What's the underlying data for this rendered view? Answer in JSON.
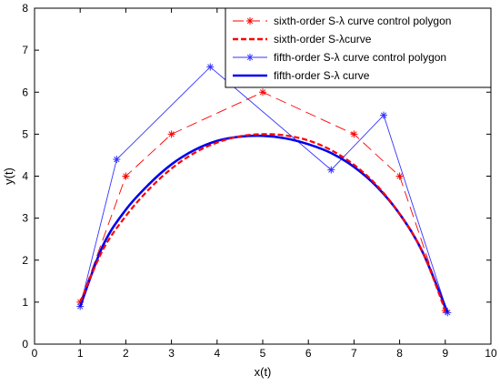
{
  "chart_data": {
    "type": "line",
    "title": "",
    "xlabel": "x(t)",
    "ylabel": "y(t)",
    "xlim": [
      0,
      10
    ],
    "ylim": [
      0,
      8
    ],
    "xticks": [
      0,
      1,
      2,
      3,
      4,
      5,
      6,
      7,
      8,
      9,
      10
    ],
    "yticks": [
      0,
      1,
      2,
      3,
      4,
      5,
      6,
      7,
      8
    ],
    "grid": false,
    "legend_position": "top-right",
    "series": [
      {
        "name": "sixth-order S-λ curve control polygon",
        "style": "control-polygon",
        "color": "#ff0000",
        "dash": "long-dash",
        "marker": "asterisk",
        "x": [
          1,
          2,
          3,
          5,
          7,
          8,
          9
        ],
        "y": [
          1,
          4,
          5,
          6,
          5,
          4,
          0.8
        ]
      },
      {
        "name": "sixth-order S-λcurve",
        "style": "curve",
        "color": "#ff0000",
        "dash": "dashed",
        "x": [
          1.0,
          1.5,
          2.0,
          2.5,
          3.0,
          3.5,
          4.0,
          4.5,
          5.0,
          5.5,
          6.0,
          6.5,
          7.0,
          7.5,
          8.0,
          8.5,
          9.0
        ],
        "y": [
          1.0,
          2.25,
          3.05,
          3.68,
          4.18,
          4.55,
          4.8,
          4.95,
          5.0,
          4.97,
          4.85,
          4.62,
          4.27,
          3.78,
          3.1,
          2.2,
          0.8
        ]
      },
      {
        "name": "fifth-order S-λ curve control polygon",
        "style": "control-polygon",
        "color": "#3333ff",
        "dash": "solid",
        "marker": "asterisk",
        "x": [
          1,
          1.8,
          3.85,
          6.5,
          7.65,
          9.05
        ],
        "y": [
          0.9,
          4.4,
          6.6,
          4.15,
          5.45,
          0.75
        ]
      },
      {
        "name": "fifth-order S-λ curve",
        "style": "curve",
        "color": "#0000ee",
        "dash": "solid",
        "x": [
          1.0,
          1.5,
          2.0,
          2.5,
          3.0,
          3.5,
          4.0,
          4.5,
          5.0,
          5.5,
          6.0,
          6.5,
          7.0,
          7.5,
          8.0,
          8.5,
          9.05
        ],
        "y": [
          0.9,
          2.35,
          3.2,
          3.8,
          4.28,
          4.62,
          4.84,
          4.94,
          4.96,
          4.9,
          4.76,
          4.55,
          4.22,
          3.75,
          3.1,
          2.2,
          0.75
        ]
      }
    ]
  }
}
